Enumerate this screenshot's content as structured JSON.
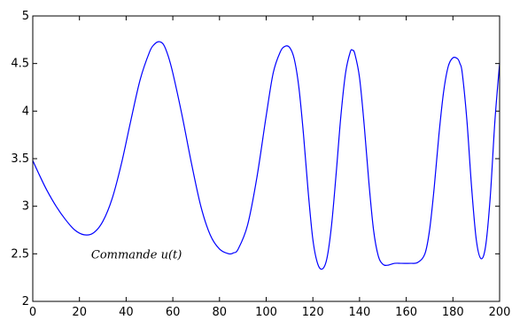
{
  "chart_data": {
    "type": "line",
    "title": "",
    "xlabel": "",
    "ylabel": "",
    "xlim": [
      0,
      200
    ],
    "ylim": [
      2,
      5
    ],
    "xticks": [
      0,
      20,
      40,
      60,
      80,
      100,
      120,
      140,
      160,
      180,
      200
    ],
    "xtick_labels": [
      "0",
      "20",
      "40",
      "60",
      "80",
      "100",
      "120",
      "140",
      "160",
      "180",
      "200"
    ],
    "yticks": [
      2,
      2.5,
      3,
      3.5,
      4,
      4.5,
      5
    ],
    "ytick_labels": [
      "2",
      "2.5",
      "3",
      "3.5",
      "4",
      "4.5",
      "5"
    ],
    "grid": false,
    "annotation": {
      "text": "Commande u(t)",
      "x": 25,
      "y": 2.45
    },
    "series": [
      {
        "color": "#0000ff",
        "x": [
          0,
          3,
          6,
          10,
          14,
          18,
          22,
          26,
          30,
          34,
          38,
          42,
          46,
          50,
          52,
          54,
          56,
          58,
          60,
          64,
          68,
          72,
          76,
          80,
          84,
          86,
          88,
          92,
          96,
          100,
          103,
          106,
          108,
          110,
          112,
          114,
          116,
          118,
          120,
          122,
          124,
          126,
          128,
          130,
          132,
          134,
          136,
          137,
          138,
          140,
          142,
          144,
          146,
          148,
          150,
          152,
          155,
          158,
          162,
          165,
          168,
          170,
          172,
          174,
          176,
          178,
          180,
          182,
          183,
          184,
          186,
          188,
          190,
          192,
          194,
          196,
          198,
          200
        ],
        "y": [
          3.48,
          3.32,
          3.17,
          3.0,
          2.86,
          2.75,
          2.7,
          2.72,
          2.84,
          3.08,
          3.45,
          3.9,
          4.33,
          4.62,
          4.7,
          4.73,
          4.7,
          4.58,
          4.4,
          3.95,
          3.45,
          3.0,
          2.7,
          2.55,
          2.5,
          2.51,
          2.55,
          2.8,
          3.3,
          3.95,
          4.4,
          4.62,
          4.68,
          4.67,
          4.55,
          4.25,
          3.75,
          3.15,
          2.65,
          2.4,
          2.34,
          2.45,
          2.8,
          3.35,
          3.95,
          4.4,
          4.62,
          4.64,
          4.6,
          4.35,
          3.85,
          3.25,
          2.75,
          2.48,
          2.39,
          2.38,
          2.4,
          2.4,
          2.4,
          2.41,
          2.5,
          2.75,
          3.2,
          3.75,
          4.2,
          4.47,
          4.56,
          4.55,
          4.5,
          4.4,
          3.9,
          3.2,
          2.65,
          2.45,
          2.58,
          3.1,
          3.9,
          4.5
        ]
      }
    ]
  }
}
